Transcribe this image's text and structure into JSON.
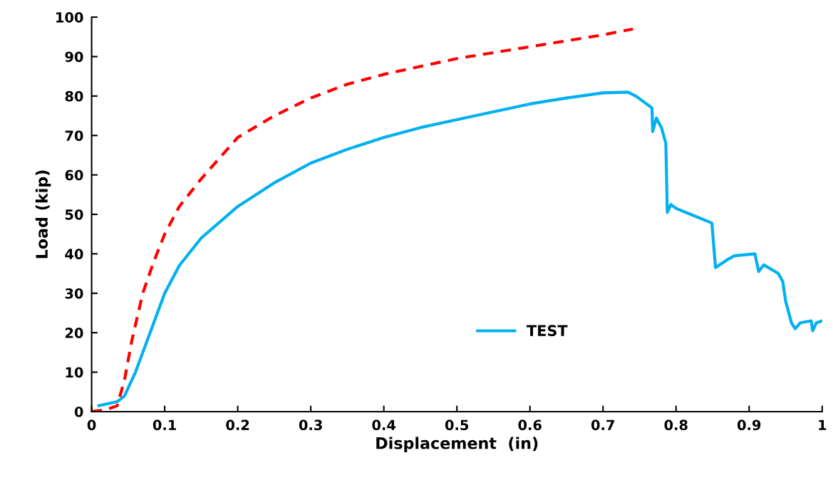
{
  "chart_data": {
    "type": "line",
    "xlabel": "Displacement  (in)",
    "ylabel": "Load (kip)",
    "xlim": [
      0,
      1
    ],
    "ylim": [
      0,
      100
    ],
    "xticks": [
      0,
      0.1,
      0.2,
      0.3,
      0.4,
      0.5,
      0.6,
      0.7,
      0.8,
      0.9,
      1
    ],
    "yticks": [
      0,
      10,
      20,
      30,
      40,
      50,
      60,
      70,
      80,
      90,
      100
    ],
    "grid": false,
    "legend": "bottom",
    "marker": "none",
    "series": [
      {
        "name": "TEST",
        "color": "#00b0f0",
        "line_style": "solid",
        "x": [
          0.01,
          0.035,
          0.045,
          0.06,
          0.08,
          0.1,
          0.12,
          0.15,
          0.2,
          0.25,
          0.3,
          0.35,
          0.4,
          0.45,
          0.5,
          0.55,
          0.6,
          0.65,
          0.7,
          0.734,
          0.745,
          0.767,
          0.768,
          0.773,
          0.78,
          0.786,
          0.788,
          0.793,
          0.8,
          0.82,
          0.849,
          0.854,
          0.87,
          0.88,
          0.908,
          0.913,
          0.92,
          0.94,
          0.946,
          0.95,
          0.958,
          0.963,
          0.97,
          0.985,
          0.987,
          0.992,
          1.0
        ],
        "values": [
          1.5,
          2.5,
          4,
          10,
          20,
          30,
          37,
          44,
          52,
          58,
          63,
          66.5,
          69.5,
          72,
          74,
          76,
          78,
          79.5,
          80.8,
          81,
          80,
          77,
          71,
          74.4,
          72,
          68,
          50.5,
          52.5,
          51.5,
          50,
          47.8,
          36.5,
          38.5,
          39.5,
          40,
          35.5,
          37.2,
          35,
          33,
          28,
          22.5,
          21,
          22.5,
          23,
          20.5,
          22.5,
          23
        ]
      },
      {
        "color": "#ff0000",
        "line_style": "dashed",
        "x": [
          0,
          0.02,
          0.035,
          0.045,
          0.055,
          0.07,
          0.085,
          0.1,
          0.12,
          0.15,
          0.2,
          0.25,
          0.3,
          0.35,
          0.4,
          0.45,
          0.5,
          0.55,
          0.6,
          0.65,
          0.7,
          0.741
        ],
        "values": [
          0,
          0.5,
          1.5,
          8,
          18,
          30,
          38,
          45,
          52,
          59,
          69.5,
          75,
          79.5,
          83,
          85.5,
          87.5,
          89.5,
          91,
          92.5,
          94,
          95.5,
          97
        ]
      }
    ]
  }
}
